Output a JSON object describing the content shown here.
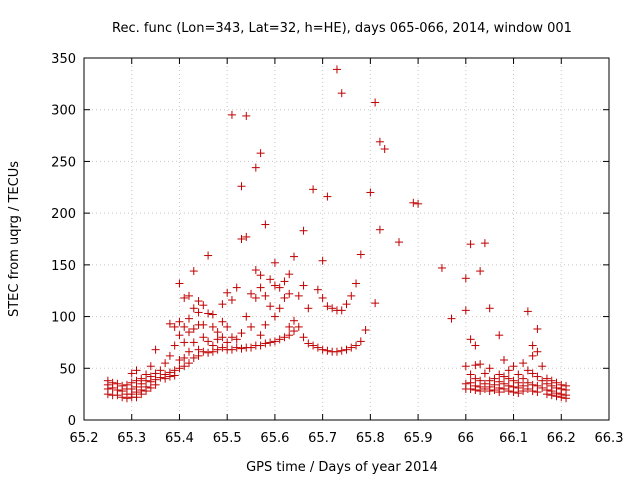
{
  "chart_data": {
    "type": "scatter",
    "title": "Rec. func (Lon=343, Lat=32, h=HE), days 065-066, 2014, window 001",
    "xlabel": "GPS time / Days of year 2014",
    "ylabel": "STEC from uqrg / TECUs",
    "xlim": [
      65.2,
      66.3
    ],
    "ylim": [
      0,
      350
    ],
    "xticks": [
      65.2,
      65.3,
      65.4,
      65.5,
      65.6,
      65.7,
      65.8,
      65.9,
      66.0,
      66.1,
      66.2,
      66.3
    ],
    "xtick_labels": [
      "65.2",
      "65.3",
      "65.4",
      "65.5",
      "65.6",
      "65.7",
      "65.8",
      "65.9",
      "66",
      "66.1",
      "66.2",
      "66.3"
    ],
    "yticks": [
      0,
      50,
      100,
      150,
      200,
      250,
      300,
      350
    ],
    "ytick_labels": [
      "0",
      "50",
      "100",
      "150",
      "200",
      "250",
      "300",
      "350"
    ],
    "grid": true,
    "marker": "+",
    "color": "#c00000",
    "points": [
      [
        65.25,
        38
      ],
      [
        65.25,
        34
      ],
      [
        65.25,
        30
      ],
      [
        65.25,
        25
      ],
      [
        65.26,
        36
      ],
      [
        65.26,
        31
      ],
      [
        65.26,
        24
      ],
      [
        65.27,
        35
      ],
      [
        65.27,
        29
      ],
      [
        65.27,
        24
      ],
      [
        65.28,
        33
      ],
      [
        65.28,
        28
      ],
      [
        65.28,
        22
      ],
      [
        65.29,
        34
      ],
      [
        65.29,
        30
      ],
      [
        65.29,
        25
      ],
      [
        65.29,
        21
      ],
      [
        65.3,
        45
      ],
      [
        65.3,
        36
      ],
      [
        65.3,
        30
      ],
      [
        65.3,
        25
      ],
      [
        65.3,
        22
      ],
      [
        65.31,
        48
      ],
      [
        65.31,
        38
      ],
      [
        65.31,
        32
      ],
      [
        65.31,
        27
      ],
      [
        65.31,
        22
      ],
      [
        65.32,
        40
      ],
      [
        65.32,
        35
      ],
      [
        65.32,
        29
      ],
      [
        65.32,
        25
      ],
      [
        65.33,
        44
      ],
      [
        65.33,
        38
      ],
      [
        65.33,
        32
      ],
      [
        65.33,
        28
      ],
      [
        65.34,
        52
      ],
      [
        65.34,
        42
      ],
      [
        65.34,
        37
      ],
      [
        65.34,
        31
      ],
      [
        65.35,
        68
      ],
      [
        65.35,
        45
      ],
      [
        65.35,
        39
      ],
      [
        65.35,
        34
      ],
      [
        65.36,
        48
      ],
      [
        65.36,
        41
      ],
      [
        65.37,
        55
      ],
      [
        65.37,
        44
      ],
      [
        65.37,
        40
      ],
      [
        65.38,
        93
      ],
      [
        65.38,
        62
      ],
      [
        65.38,
        46
      ],
      [
        65.38,
        42
      ],
      [
        65.39,
        90
      ],
      [
        65.39,
        72
      ],
      [
        65.39,
        48
      ],
      [
        65.39,
        43
      ],
      [
        65.4,
        132
      ],
      [
        65.4,
        95
      ],
      [
        65.4,
        82
      ],
      [
        65.4,
        58
      ],
      [
        65.4,
        50
      ],
      [
        65.41,
        118
      ],
      [
        65.41,
        90
      ],
      [
        65.41,
        75
      ],
      [
        65.41,
        60
      ],
      [
        65.41,
        52
      ],
      [
        65.42,
        120
      ],
      [
        65.42,
        98
      ],
      [
        65.42,
        85
      ],
      [
        65.42,
        66
      ],
      [
        65.42,
        55
      ],
      [
        65.43,
        144
      ],
      [
        65.43,
        108
      ],
      [
        65.43,
        88
      ],
      [
        65.43,
        75
      ],
      [
        65.43,
        60
      ],
      [
        65.44,
        115
      ],
      [
        65.44,
        104
      ],
      [
        65.44,
        92
      ],
      [
        65.44,
        68
      ],
      [
        65.44,
        62
      ],
      [
        65.45,
        111
      ],
      [
        65.45,
        92
      ],
      [
        65.45,
        80
      ],
      [
        65.45,
        66
      ],
      [
        65.46,
        159
      ],
      [
        65.46,
        103
      ],
      [
        65.46,
        76
      ],
      [
        65.46,
        65
      ],
      [
        65.47,
        102
      ],
      [
        65.47,
        90
      ],
      [
        65.47,
        72
      ],
      [
        65.47,
        66
      ],
      [
        65.48,
        85
      ],
      [
        65.48,
        78
      ],
      [
        65.48,
        68
      ],
      [
        65.49,
        112
      ],
      [
        65.49,
        95
      ],
      [
        65.49,
        80
      ],
      [
        65.49,
        70
      ],
      [
        65.5,
        123
      ],
      [
        65.5,
        90
      ],
      [
        65.5,
        75
      ],
      [
        65.5,
        68
      ],
      [
        65.51,
        295
      ],
      [
        65.51,
        116
      ],
      [
        65.51,
        80
      ],
      [
        65.51,
        68
      ],
      [
        65.52,
        128
      ],
      [
        65.52,
        78
      ],
      [
        65.52,
        70
      ],
      [
        65.53,
        226
      ],
      [
        65.53,
        175
      ],
      [
        65.53,
        84
      ],
      [
        65.53,
        69
      ],
      [
        65.54,
        294
      ],
      [
        65.54,
        177
      ],
      [
        65.54,
        100
      ],
      [
        65.54,
        70
      ],
      [
        65.55,
        122
      ],
      [
        65.55,
        90
      ],
      [
        65.55,
        70
      ],
      [
        65.56,
        244
      ],
      [
        65.56,
        145
      ],
      [
        65.56,
        118
      ],
      [
        65.56,
        72
      ],
      [
        65.57,
        258
      ],
      [
        65.57,
        140
      ],
      [
        65.57,
        128
      ],
      [
        65.57,
        82
      ],
      [
        65.57,
        72
      ],
      [
        65.58,
        189
      ],
      [
        65.58,
        120
      ],
      [
        65.58,
        92
      ],
      [
        65.58,
        74
      ],
      [
        65.59,
        136
      ],
      [
        65.59,
        110
      ],
      [
        65.59,
        75
      ],
      [
        65.6,
        152
      ],
      [
        65.6,
        130
      ],
      [
        65.6,
        100
      ],
      [
        65.6,
        76
      ],
      [
        65.61,
        128
      ],
      [
        65.61,
        108
      ],
      [
        65.61,
        78
      ],
      [
        65.62,
        134
      ],
      [
        65.62,
        118
      ],
      [
        65.62,
        80
      ],
      [
        65.63,
        141
      ],
      [
        65.63,
        122
      ],
      [
        65.63,
        90
      ],
      [
        65.63,
        82
      ],
      [
        65.64,
        158
      ],
      [
        65.64,
        96
      ],
      [
        65.64,
        86
      ],
      [
        65.65,
        120
      ],
      [
        65.65,
        90
      ],
      [
        65.66,
        183
      ],
      [
        65.66,
        130
      ],
      [
        65.66,
        80
      ],
      [
        65.67,
        108
      ],
      [
        65.67,
        74
      ],
      [
        65.68,
        223
      ],
      [
        65.68,
        72
      ],
      [
        65.69,
        126
      ],
      [
        65.69,
        70
      ],
      [
        65.7,
        154
      ],
      [
        65.7,
        118
      ],
      [
        65.7,
        68
      ],
      [
        65.71,
        216
      ],
      [
        65.71,
        110
      ],
      [
        65.71,
        67
      ],
      [
        65.72,
        108
      ],
      [
        65.72,
        66
      ],
      [
        65.73,
        339
      ],
      [
        65.73,
        106
      ],
      [
        65.73,
        66
      ],
      [
        65.74,
        316
      ],
      [
        65.74,
        106
      ],
      [
        65.74,
        67
      ],
      [
        65.75,
        112
      ],
      [
        65.75,
        68
      ],
      [
        65.76,
        120
      ],
      [
        65.76,
        70
      ],
      [
        65.77,
        132
      ],
      [
        65.77,
        72
      ],
      [
        65.78,
        160
      ],
      [
        65.78,
        76
      ],
      [
        65.79,
        87
      ],
      [
        65.8,
        220
      ],
      [
        65.81,
        307
      ],
      [
        65.81,
        113
      ],
      [
        65.82,
        184
      ],
      [
        65.82,
        269
      ],
      [
        65.83,
        262
      ],
      [
        65.86,
        172
      ],
      [
        65.89,
        210
      ],
      [
        65.9,
        209
      ],
      [
        65.95,
        147
      ],
      [
        65.97,
        98
      ],
      [
        66.0,
        137
      ],
      [
        66.0,
        106
      ],
      [
        66.0,
        52
      ],
      [
        66.0,
        35
      ],
      [
        66.0,
        30
      ],
      [
        66.01,
        170
      ],
      [
        66.01,
        78
      ],
      [
        66.01,
        44
      ],
      [
        66.01,
        36
      ],
      [
        66.01,
        30
      ],
      [
        66.02,
        72
      ],
      [
        66.02,
        53
      ],
      [
        66.02,
        40
      ],
      [
        66.02,
        33
      ],
      [
        66.02,
        29
      ],
      [
        66.03,
        144
      ],
      [
        66.03,
        54
      ],
      [
        66.03,
        38
      ],
      [
        66.03,
        32
      ],
      [
        66.03,
        28
      ],
      [
        66.04,
        171
      ],
      [
        66.04,
        45
      ],
      [
        66.04,
        35
      ],
      [
        66.04,
        30
      ],
      [
        66.05,
        108
      ],
      [
        66.05,
        50
      ],
      [
        66.05,
        38
      ],
      [
        66.05,
        32
      ],
      [
        66.05,
        28
      ],
      [
        66.06,
        40
      ],
      [
        66.06,
        34
      ],
      [
        66.06,
        29
      ],
      [
        66.07,
        82
      ],
      [
        66.07,
        44
      ],
      [
        66.07,
        37
      ],
      [
        66.07,
        31
      ],
      [
        66.07,
        27
      ],
      [
        66.08,
        58
      ],
      [
        66.08,
        42
      ],
      [
        66.08,
        35
      ],
      [
        66.08,
        30
      ],
      [
        66.09,
        48
      ],
      [
        66.09,
        40
      ],
      [
        66.09,
        33
      ],
      [
        66.09,
        28
      ],
      [
        66.1,
        52
      ],
      [
        66.1,
        38
      ],
      [
        66.1,
        32
      ],
      [
        66.1,
        27
      ],
      [
        66.11,
        44
      ],
      [
        66.11,
        36
      ],
      [
        66.11,
        31
      ],
      [
        66.11,
        26
      ],
      [
        66.12,
        55
      ],
      [
        66.12,
        40
      ],
      [
        66.12,
        33
      ],
      [
        66.12,
        28
      ],
      [
        66.13,
        105
      ],
      [
        66.13,
        48
      ],
      [
        66.13,
        36
      ],
      [
        66.13,
        30
      ],
      [
        66.14,
        72
      ],
      [
        66.14,
        62
      ],
      [
        66.14,
        45
      ],
      [
        66.14,
        34
      ],
      [
        66.14,
        28
      ],
      [
        66.15,
        88
      ],
      [
        66.15,
        66
      ],
      [
        66.15,
        42
      ],
      [
        66.15,
        33
      ],
      [
        66.15,
        27
      ],
      [
        66.16,
        52
      ],
      [
        66.16,
        38
      ],
      [
        66.16,
        31
      ],
      [
        66.17,
        40
      ],
      [
        66.17,
        35
      ],
      [
        66.17,
        29
      ],
      [
        66.17,
        25
      ],
      [
        66.18,
        38
      ],
      [
        66.18,
        33
      ],
      [
        66.18,
        28
      ],
      [
        66.18,
        24
      ],
      [
        66.19,
        36
      ],
      [
        66.19,
        31
      ],
      [
        66.19,
        26
      ],
      [
        66.19,
        23
      ],
      [
        66.2,
        34
      ],
      [
        66.2,
        30
      ],
      [
        66.2,
        25
      ],
      [
        66.2,
        22
      ],
      [
        66.21,
        33
      ],
      [
        66.21,
        29
      ],
      [
        66.21,
        24
      ],
      [
        66.21,
        21
      ]
    ]
  }
}
